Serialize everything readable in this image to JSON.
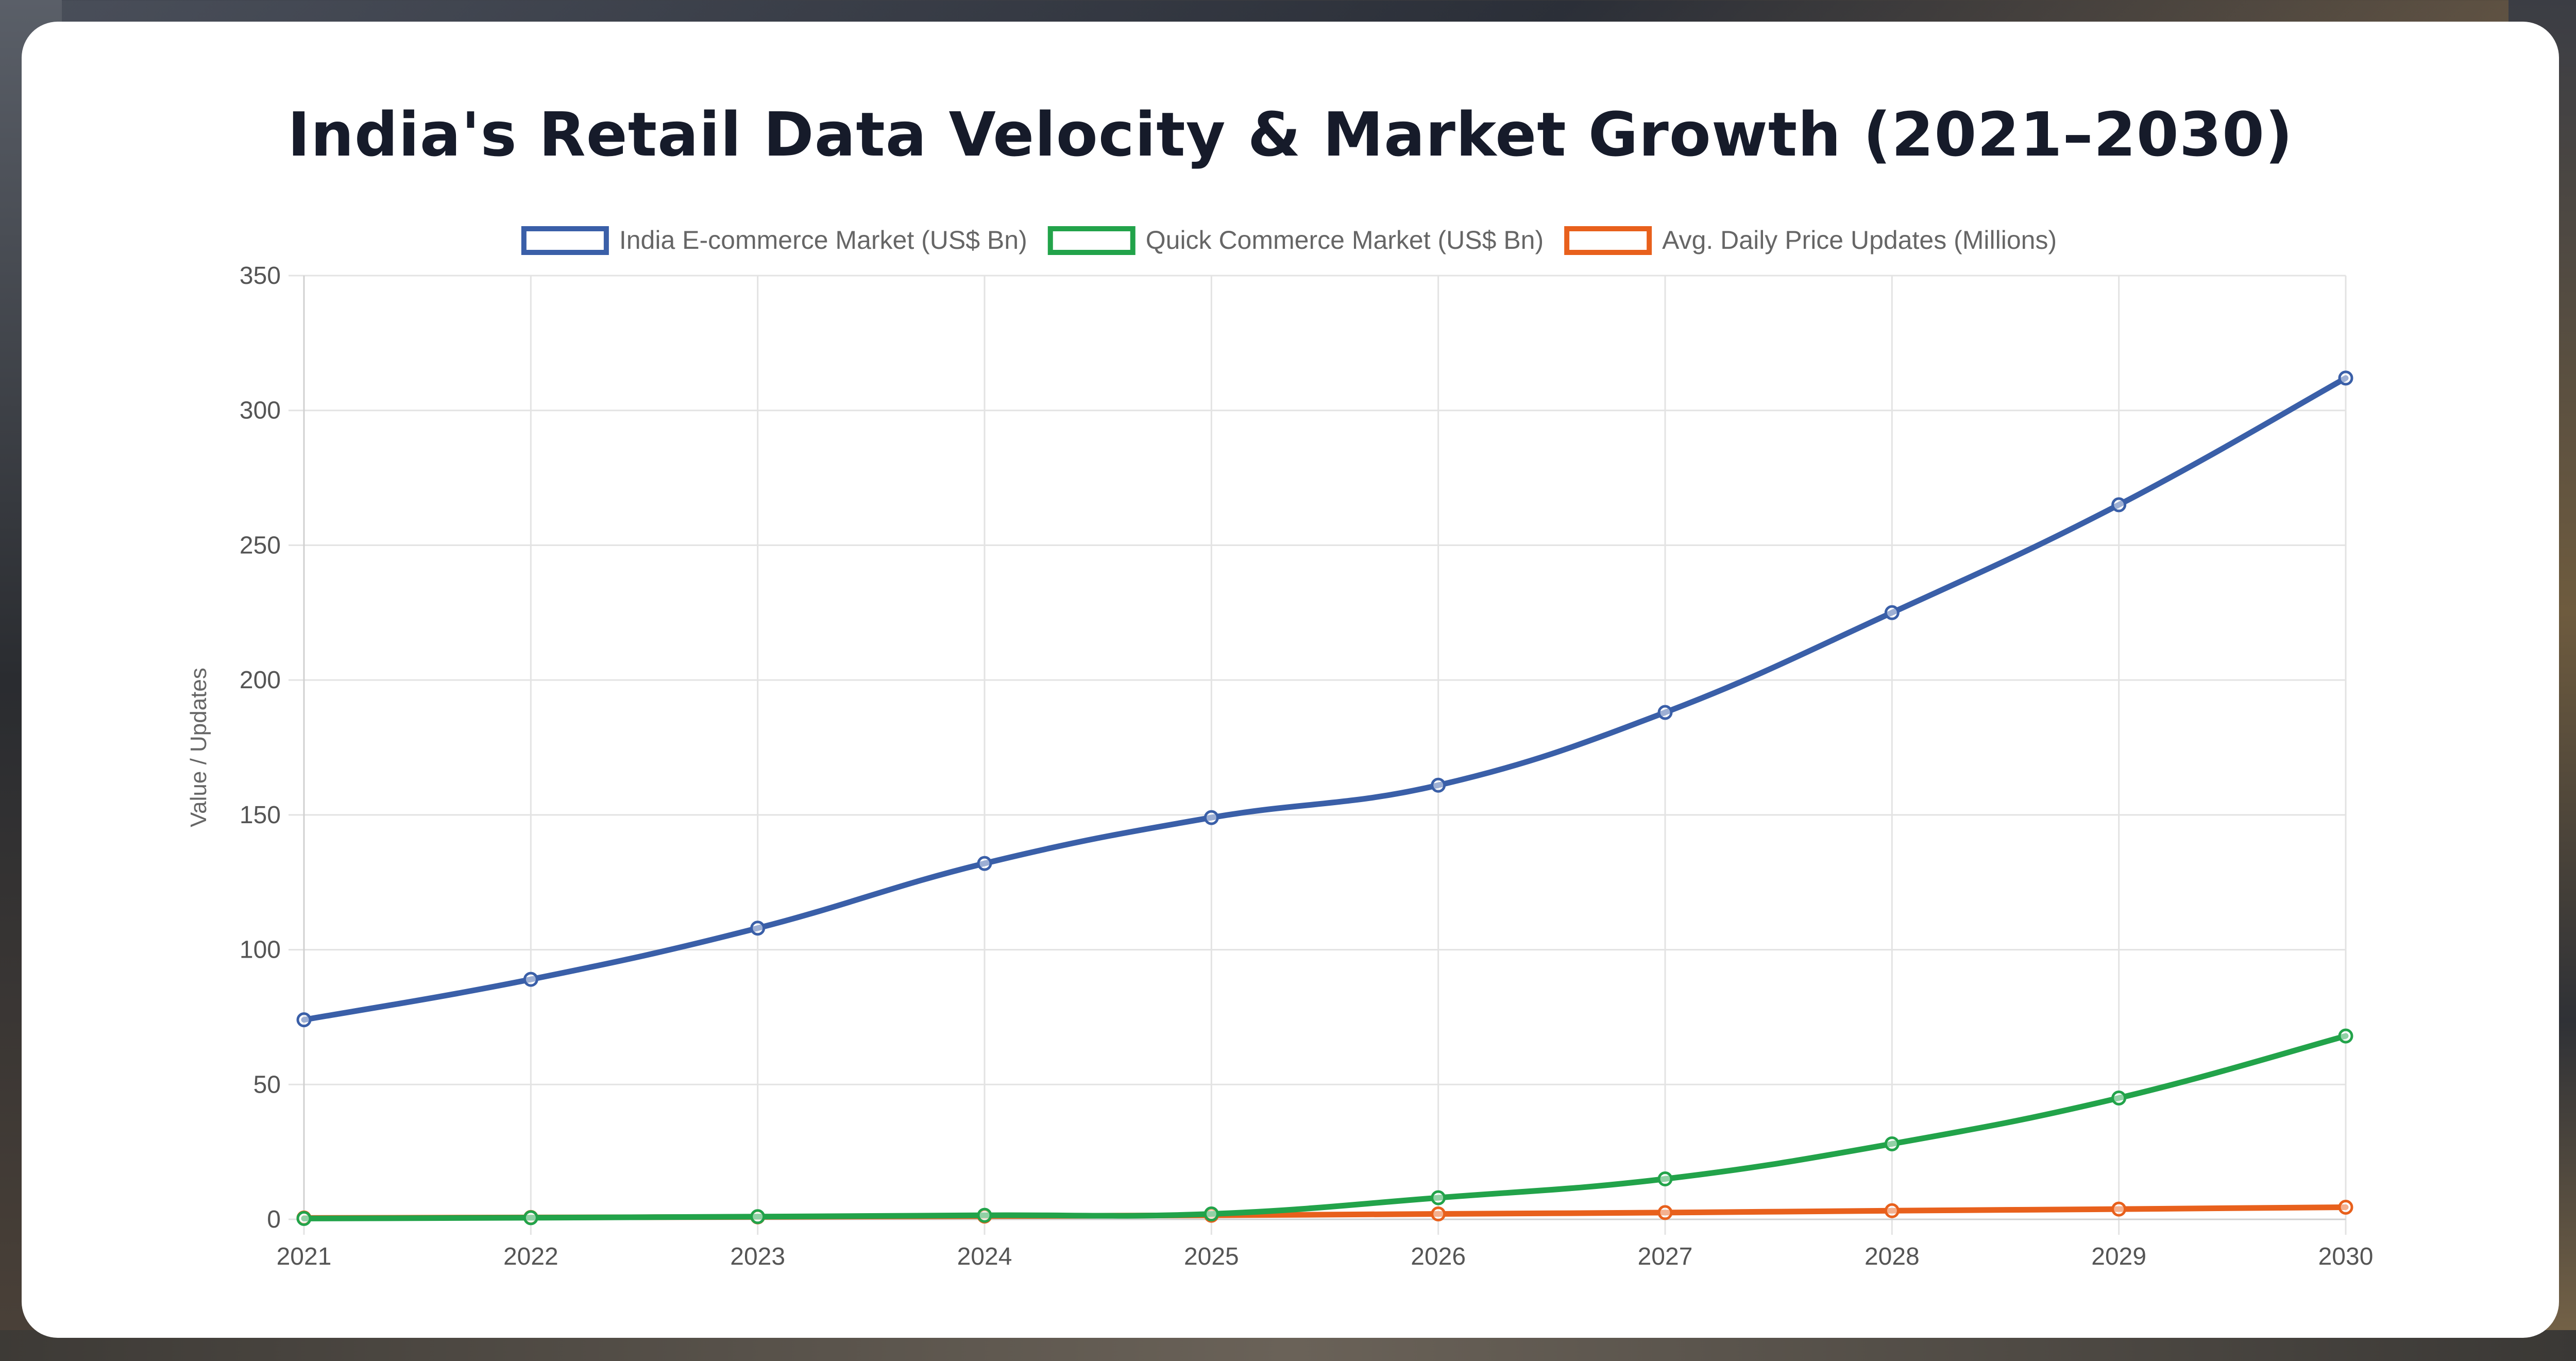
{
  "chart_data": {
    "type": "line",
    "title": "India's Retail Data Velocity & Market Growth (2021–2030)",
    "xlabel": "",
    "ylabel": "Value / Updates",
    "ylim": [
      0,
      350
    ],
    "yticks": [
      0,
      50,
      100,
      150,
      200,
      250,
      300,
      350
    ],
    "grid": true,
    "legend_position": "top-center",
    "x": [
      "2021",
      "2022",
      "2023",
      "2024",
      "2025",
      "2026",
      "2027",
      "2028",
      "2029",
      "2030"
    ],
    "series": [
      {
        "name": "India E-commerce Market (US$ Bn)",
        "color": "#3a5fa8",
        "values": [
          74,
          89,
          108,
          132,
          149,
          161,
          188,
          225,
          265,
          312
        ]
      },
      {
        "name": "Quick Commerce Market (US$ Bn)",
        "color": "#22a34a",
        "values": [
          0.3,
          0.6,
          1.0,
          1.5,
          2.0,
          8,
          15,
          28,
          45,
          68
        ]
      },
      {
        "name": "Avg. Daily Price Updates (Millions)",
        "color": "#e8601c",
        "values": [
          0.5,
          0.7,
          0.9,
          1.2,
          1.5,
          2.0,
          2.5,
          3.2,
          3.8,
          4.5
        ]
      }
    ]
  }
}
